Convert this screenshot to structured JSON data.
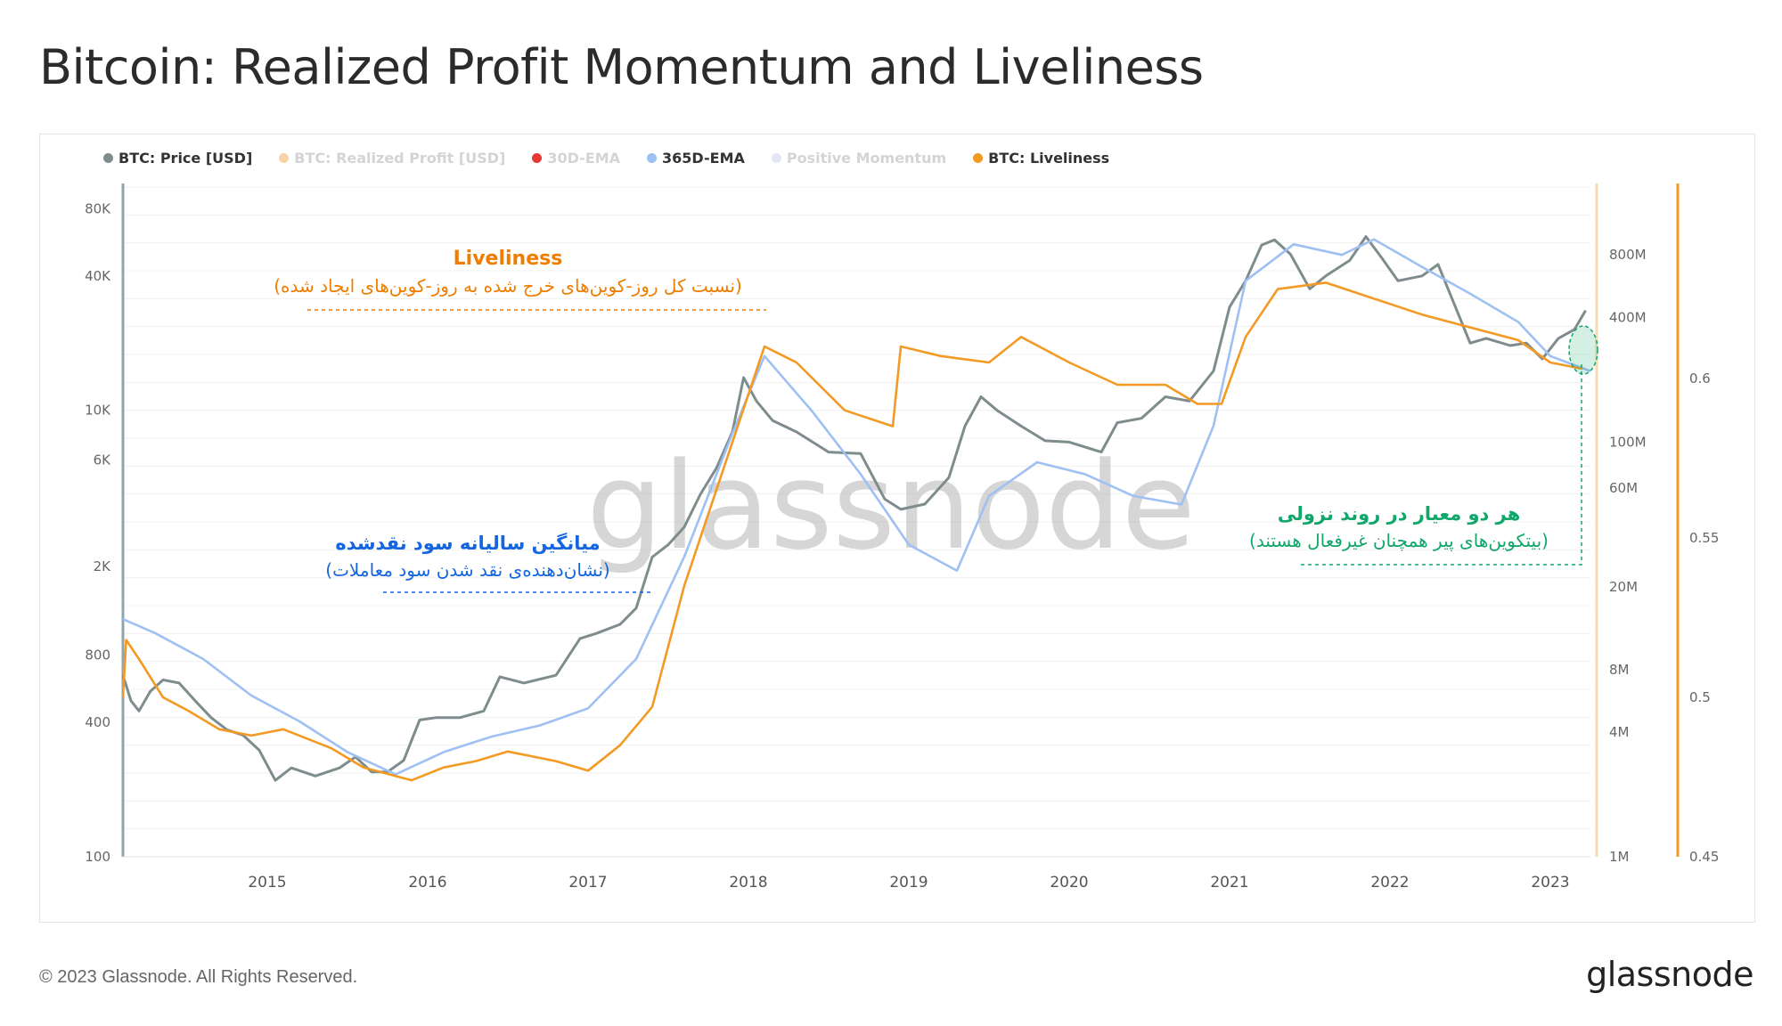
{
  "title": "Bitcoin: Realized Profit Momentum and Liveliness",
  "legend": [
    {
      "label": "BTC: Price [USD]",
      "color": "#7f8c8d",
      "active": true
    },
    {
      "label": "BTC: Realized Profit [USD]",
      "color": "#f6d4a8",
      "active": false
    },
    {
      "label": "30D-EMA",
      "color": "#e53935",
      "active": false
    },
    {
      "label": "365D-EMA",
      "color": "#9fc0f2",
      "active": true
    },
    {
      "label": "Positive Momentum",
      "color": "#e4e6f4",
      "active": false
    },
    {
      "label": "BTC: Liveliness",
      "color": "#f39a24",
      "active": true
    }
  ],
  "footer": {
    "copyright": "© 2023 Glassnode. All Rights Reserved.",
    "logo": "glassnode"
  },
  "watermark": "glassnode",
  "annotations": {
    "liveliness": {
      "title": "Liveliness",
      "subtitle": "(نسبت کل روز-کوین‌های خرج شده به روز-کوین‌های ایجاد شده)"
    },
    "ema": {
      "title": "میانگین سالیانه سود نقدشده",
      "subtitle": "(نشان‌دهنده‌ی نقد شدن سود معاملات)"
    },
    "decline": {
      "title": "هر دو معیار در روند نزولی",
      "subtitle": "(بیتکوین‌های پیر همچنان غیرفعال هستند)"
    }
  },
  "chart_data": {
    "type": "line",
    "x_ticks": [
      "2015",
      "2016",
      "2017",
      "2018",
      "2019",
      "2020",
      "2021",
      "2022",
      "2023"
    ],
    "x_range": [
      2014.1,
      2023.25
    ],
    "left_axis": {
      "scale": "log",
      "ticks": [
        "100",
        "400",
        "800",
        "2K",
        "6K",
        "10K",
        "40K",
        "80K"
      ],
      "range": [
        100,
        100000
      ]
    },
    "right_axis_1": {
      "scale": "log",
      "ticks": [
        "1M",
        "4M",
        "8M",
        "20M",
        "60M",
        "100M",
        "400M",
        "800M"
      ],
      "range": [
        1000000,
        1700000000
      ]
    },
    "right_axis_2": {
      "scale": "linear",
      "ticks": [
        "0.45",
        "0.5",
        "0.55",
        "0.6"
      ],
      "range": [
        0.45,
        0.66
      ]
    },
    "series": [
      {
        "name": "BTC: Price [USD]",
        "axis": "left",
        "color": "#7f8c8d",
        "x": [
          2014.1,
          2014.15,
          2014.2,
          2014.27,
          2014.35,
          2014.45,
          2014.55,
          2014.65,
          2014.75,
          2014.85,
          2014.95,
          2015.05,
          2015.15,
          2015.3,
          2015.45,
          2015.55,
          2015.65,
          2015.75,
          2015.85,
          2015.95,
          2016.05,
          2016.2,
          2016.35,
          2016.45,
          2016.6,
          2016.8,
          2016.95,
          2017.05,
          2017.2,
          2017.3,
          2017.4,
          2017.5,
          2017.6,
          2017.7,
          2017.8,
          2017.9,
          2017.97,
          2018.05,
          2018.15,
          2018.3,
          2018.5,
          2018.7,
          2018.85,
          2018.95,
          2019.1,
          2019.25,
          2019.35,
          2019.45,
          2019.55,
          2019.7,
          2019.85,
          2020.0,
          2020.2,
          2020.3,
          2020.45,
          2020.6,
          2020.75,
          2020.9,
          2021.0,
          2021.1,
          2021.2,
          2021.28,
          2021.38,
          2021.5,
          2021.6,
          2021.75,
          2021.85,
          2021.95,
          2022.05,
          2022.2,
          2022.3,
          2022.4,
          2022.5,
          2022.6,
          2022.75,
          2022.85,
          2022.95,
          2023.05,
          2023.15,
          2023.22
        ],
        "y": [
          650,
          500,
          450,
          550,
          620,
          600,
          500,
          420,
          370,
          350,
          300,
          220,
          250,
          230,
          250,
          280,
          240,
          240,
          270,
          410,
          420,
          420,
          450,
          640,
          600,
          650,
          950,
          1000,
          1100,
          1300,
          2200,
          2500,
          3000,
          4200,
          5500,
          8000,
          14000,
          11000,
          9000,
          8000,
          6500,
          6400,
          4000,
          3600,
          3800,
          5000,
          8500,
          11500,
          10000,
          8500,
          7300,
          7200,
          6500,
          8800,
          9200,
          11500,
          11000,
          15000,
          29000,
          38000,
          55000,
          58000,
          50000,
          35000,
          40000,
          47000,
          60000,
          48000,
          38000,
          40000,
          45000,
          30000,
          20000,
          21000,
          19500,
          20000,
          17000,
          21000,
          23000,
          28000
        ]
      },
      {
        "name": "365D-EMA",
        "axis": "right_1",
        "color": "#9fc0f2",
        "x": [
          2014.1,
          2014.3,
          2014.6,
          2014.9,
          2015.2,
          2015.5,
          2015.8,
          2016.1,
          2016.4,
          2016.7,
          2017.0,
          2017.3,
          2017.6,
          2017.9,
          2018.1,
          2018.4,
          2018.7,
          2019.0,
          2019.3,
          2019.5,
          2019.8,
          2020.1,
          2020.4,
          2020.7,
          2020.9,
          2021.1,
          2021.4,
          2021.7,
          2021.9,
          2022.2,
          2022.5,
          2022.8,
          2023.0,
          2023.25
        ],
        "y": [
          14000000,
          12000000,
          9000000,
          6000000,
          4500000,
          3200000,
          2500000,
          3200000,
          3800000,
          4300000,
          5200000,
          9000000,
          28000000,
          110000000,
          260000000,
          140000000,
          70000000,
          32000000,
          24000000,
          55000000,
          80000000,
          70000000,
          55000000,
          50000000,
          120000000,
          600000000,
          900000000,
          800000000,
          950000000,
          700000000,
          520000000,
          380000000,
          260000000,
          220000000
        ]
      },
      {
        "name": "BTC: Liveliness",
        "axis": "right_2",
        "color": "#f39a24",
        "x": [
          2014.1,
          2014.12,
          2014.2,
          2014.35,
          2014.5,
          2014.7,
          2014.9,
          2015.1,
          2015.4,
          2015.6,
          2015.9,
          2016.1,
          2016.3,
          2016.5,
          2016.8,
          2017.0,
          2017.2,
          2017.4,
          2017.6,
          2017.8,
          2018.0,
          2018.1,
          2018.3,
          2018.6,
          2018.9,
          2018.95,
          2019.2,
          2019.5,
          2019.7,
          2020.0,
          2020.3,
          2020.6,
          2020.8,
          2020.95,
          2021.1,
          2021.3,
          2021.6,
          2021.9,
          2022.2,
          2022.5,
          2022.8,
          2023.0,
          2023.2
        ],
        "y": [
          0.5,
          0.518,
          0.512,
          0.5,
          0.496,
          0.49,
          0.488,
          0.49,
          0.484,
          0.478,
          0.474,
          0.478,
          0.48,
          0.483,
          0.48,
          0.477,
          0.485,
          0.497,
          0.535,
          0.565,
          0.595,
          0.61,
          0.605,
          0.59,
          0.585,
          0.61,
          0.607,
          0.605,
          0.613,
          0.605,
          0.598,
          0.598,
          0.592,
          0.592,
          0.613,
          0.628,
          0.63,
          0.625,
          0.62,
          0.616,
          0.612,
          0.605,
          0.603
        ]
      }
    ]
  }
}
